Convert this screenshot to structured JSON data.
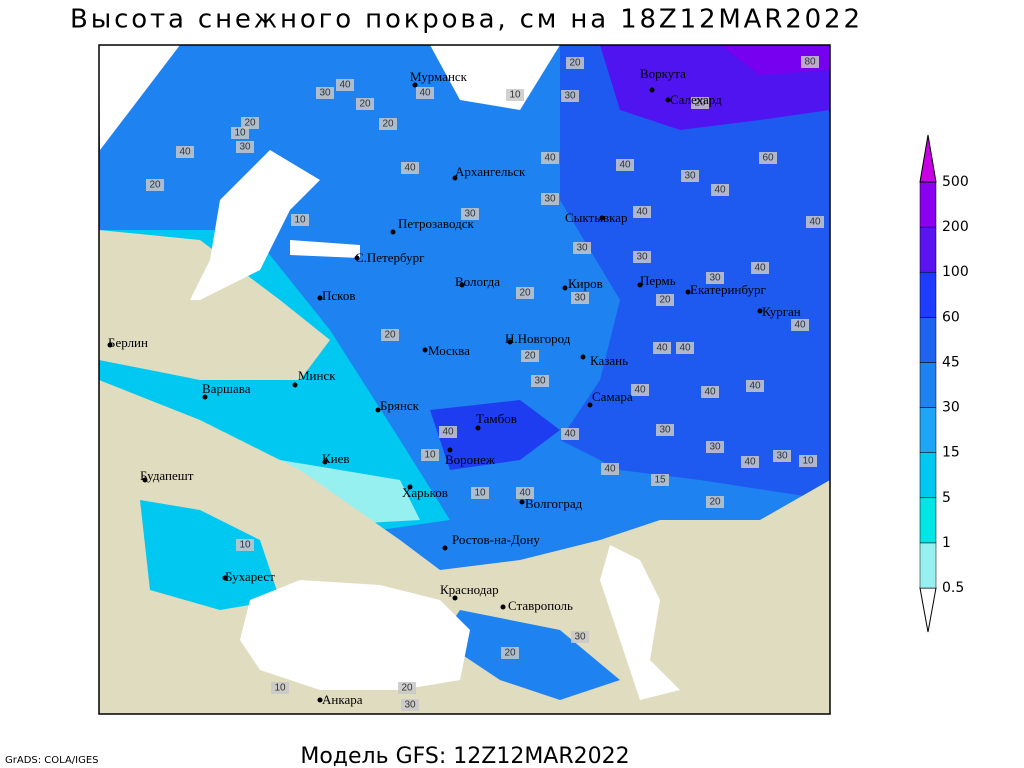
{
  "title": "Высота снежного покрова, см на 18Z12MAR2022",
  "model": "Модель GFS: 12Z12MAR2022",
  "footer_left": "GrADS: COLA/IGES",
  "colorbar": {
    "levels": [
      0.5,
      1,
      5,
      15,
      30,
      45,
      60,
      100,
      200,
      500
    ],
    "colors": [
      "#ffffff",
      "#96f0f0",
      "#00e6e6",
      "#00c8f0",
      "#1ea5f5",
      "#1e82f0",
      "#1e64f0",
      "#1e3cff",
      "#5a14f0",
      "#8c00f0",
      "#c800e6"
    ]
  },
  "cities": [
    "Мурманск",
    "Воркута",
    "Салехард",
    "Архангельск",
    "Сыктывкар",
    "Петрозаводск",
    "С.Петербург",
    "Вологда",
    "Киров",
    "Пермь",
    "Екатеринбург",
    "Курган",
    "Псков",
    "Москва",
    "Н.Новгород",
    "Казань",
    "Берлин",
    "Варшава",
    "Минск",
    "Брянск",
    "Самара",
    "Тамбов",
    "Воронеж",
    "Киев",
    "Будапешт",
    "Харьков",
    "Волгоград",
    "Ростов-на-Дону",
    "Бухарест",
    "Краснодар",
    "Ставрополь",
    "Анкара"
  ],
  "contour_labels": [
    20,
    80,
    40,
    30,
    20,
    40,
    10,
    30,
    20,
    20,
    20,
    40,
    30,
    10,
    40,
    40,
    40,
    60,
    30,
    40,
    20,
    10,
    30,
    30,
    40,
    40,
    30,
    30,
    30,
    40,
    20,
    30,
    20,
    40,
    20,
    20,
    40,
    40,
    30,
    40,
    40,
    40,
    40,
    40,
    30,
    30,
    40,
    30,
    10,
    10,
    10,
    40,
    40,
    15,
    20,
    10,
    30,
    20,
    10,
    30,
    20
  ]
}
